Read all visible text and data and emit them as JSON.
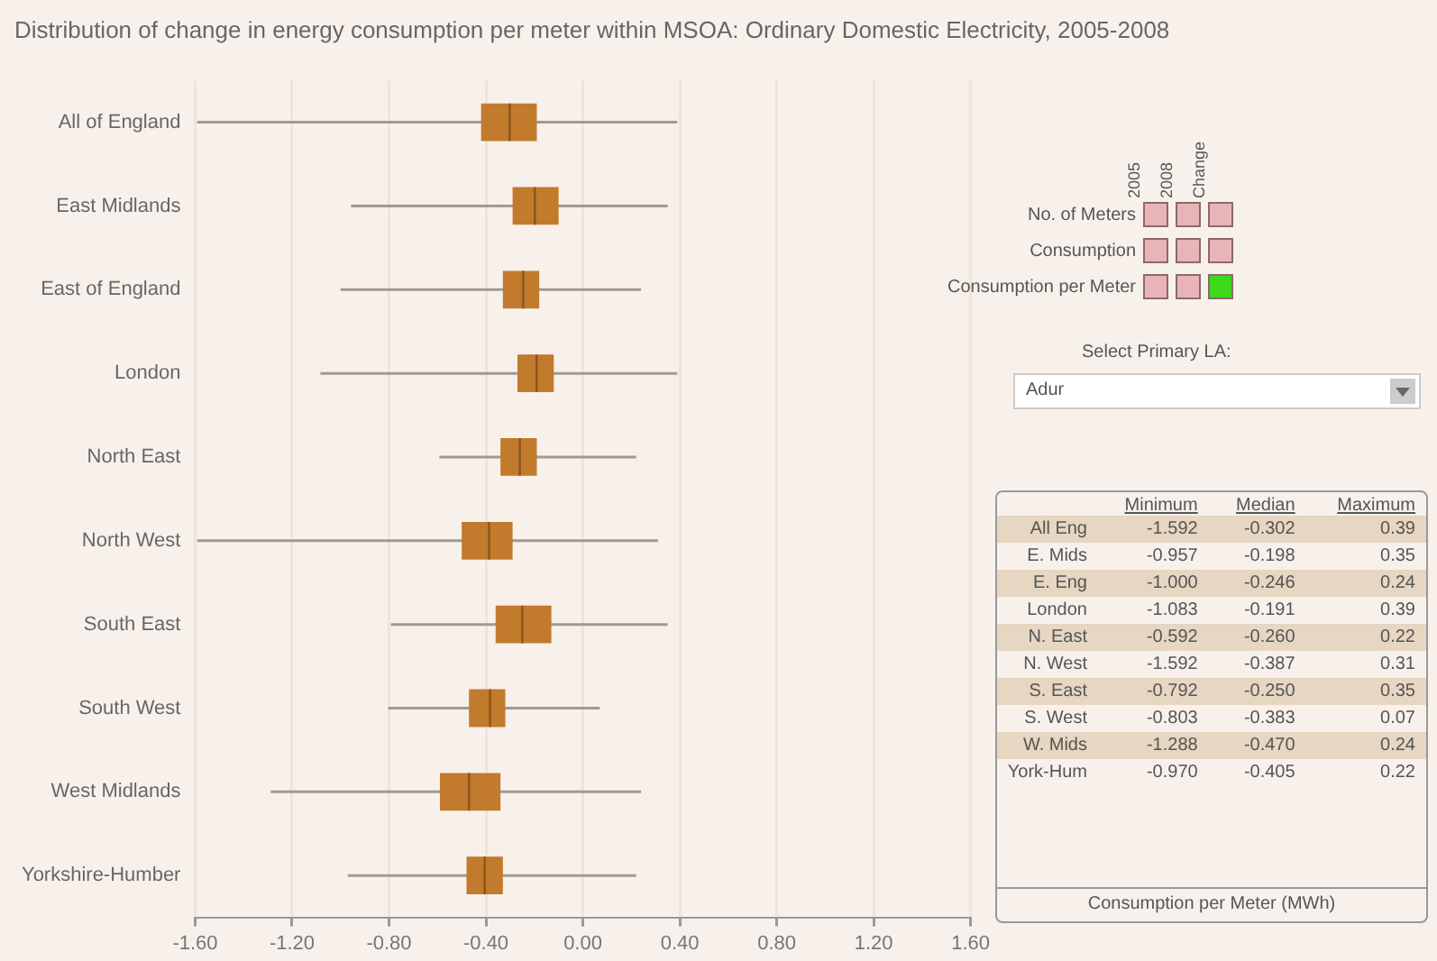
{
  "chart_data": {
    "type": "box",
    "title": "Distribution of change in energy consumption per meter within MSOA: Ordinary Domestic Electricity, 2005-2008",
    "categories": [
      "All of England",
      "East Midlands",
      "East of England",
      "London",
      "North East",
      "North West",
      "South East",
      "South West",
      "West Midlands",
      "Yorkshire-Humber"
    ],
    "orientation": "horizontal",
    "color": "#c27a2c",
    "boxes": [
      {
        "low": -1.592,
        "q1": -0.42,
        "median": -0.302,
        "q3": -0.19,
        "high": 0.39
      },
      {
        "low": -0.957,
        "q1": -0.29,
        "median": -0.198,
        "q3": -0.1,
        "high": 0.35
      },
      {
        "low": -1.0,
        "q1": -0.33,
        "median": -0.246,
        "q3": -0.18,
        "high": 0.24
      },
      {
        "low": -1.083,
        "q1": -0.27,
        "median": -0.191,
        "q3": -0.12,
        "high": 0.39
      },
      {
        "low": -0.592,
        "q1": -0.34,
        "median": -0.26,
        "q3": -0.19,
        "high": 0.22
      },
      {
        "low": -1.592,
        "q1": -0.5,
        "median": -0.387,
        "q3": -0.29,
        "high": 0.31
      },
      {
        "low": -0.792,
        "q1": -0.36,
        "median": -0.25,
        "q3": -0.13,
        "high": 0.35
      },
      {
        "low": -0.803,
        "q1": -0.47,
        "median": -0.383,
        "q3": -0.32,
        "high": 0.07
      },
      {
        "low": -1.288,
        "q1": -0.59,
        "median": -0.47,
        "q3": -0.34,
        "high": 0.24
      },
      {
        "low": -0.97,
        "q1": -0.48,
        "median": -0.405,
        "q3": -0.33,
        "high": 0.22
      }
    ],
    "xlim": [
      -1.6,
      1.6
    ],
    "xticks": [
      {
        "value": -1.6,
        "label": "-1.60"
      },
      {
        "value": -1.2,
        "label": "-1.20"
      },
      {
        "value": -0.8,
        "label": "-0.80"
      },
      {
        "value": -0.4,
        "label": "-0.40"
      },
      {
        "value": 0,
        "label": "0.00"
      },
      {
        "value": 0.4,
        "label": "0.40"
      },
      {
        "value": 0.8,
        "label": "0.80"
      },
      {
        "value": 1.2,
        "label": "1.20"
      },
      {
        "value": 1.6,
        "label": "1.60"
      }
    ],
    "grid": "x",
    "annotations": [
      "2005",
      "2008",
      "Change",
      "No. of Meters",
      "Consumption",
      "Consumption per Meter",
      "Select Primary LA:",
      "Adur",
      "Minimum",
      "Median",
      "Maximum",
      "All Eng",
      "-1.592",
      "-0.302",
      "0.39",
      "E. Mids",
      "-0.957",
      "-0.198",
      "0.35",
      "E. Eng",
      "-1.000",
      "-0.246",
      "0.24",
      "London",
      "-1.083",
      "-0.191",
      "0.39",
      "N. East",
      "-0.592",
      "-0.260",
      "0.22",
      "N. West",
      "-1.592",
      "-0.387",
      "0.31",
      "S. East",
      "-0.792",
      "-0.250",
      "0.35",
      "S. West",
      "-0.803",
      "-0.383",
      "0.07",
      "W. Mids",
      "-1.288",
      "-0.470",
      "0.24",
      "York-Hum",
      "-0.970",
      "-0.405",
      "0.22",
      "Consumption per Meter (MWh)"
    ]
  }
}
